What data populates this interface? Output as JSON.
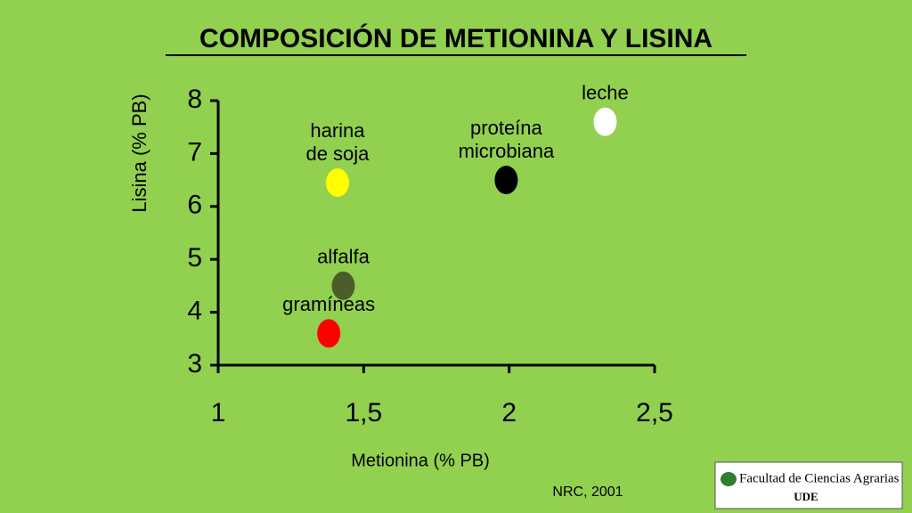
{
  "chart_data": {
    "type": "scatter",
    "title": "COMPOSICIÓN DE METIONINA Y LISINA",
    "x_label": "Metionina (% PB)",
    "y_label": "Lisina (% PB)",
    "xlim": [
      1,
      2.5
    ],
    "ylim": [
      3,
      8
    ],
    "xticks": [
      1,
      {
        "value": 1.5,
        "label": "1,5"
      },
      2,
      {
        "value": 2.5,
        "label": "2,5"
      }
    ],
    "yticks": [
      3,
      4,
      5,
      6,
      7,
      8
    ],
    "series": [
      {
        "name": [
          "harina",
          "de soja"
        ],
        "color": "#ffff00",
        "x": [
          1.41
        ],
        "values": [
          6.45
        ]
      },
      {
        "name": [
          "proteína",
          "microbiana"
        ],
        "color": "#000000",
        "x": [
          1.99
        ],
        "values": [
          6.5
        ]
      },
      {
        "name": [
          "leche"
        ],
        "color": "#ffffff",
        "x": [
          2.33
        ],
        "values": [
          7.6
        ]
      },
      {
        "name": [
          "alfalfa"
        ],
        "color": "#4a5e2a",
        "x": [
          1.43
        ],
        "values": [
          4.5
        ]
      },
      {
        "name": [
          "gramíneas"
        ],
        "color": "#ff0000",
        "x": [
          1.38
        ],
        "values": [
          3.6
        ]
      }
    ],
    "source": "NRC, 2001"
  },
  "logo": {
    "text": "Facultad de Ciencias Agrarias",
    "sub": "UDE"
  }
}
